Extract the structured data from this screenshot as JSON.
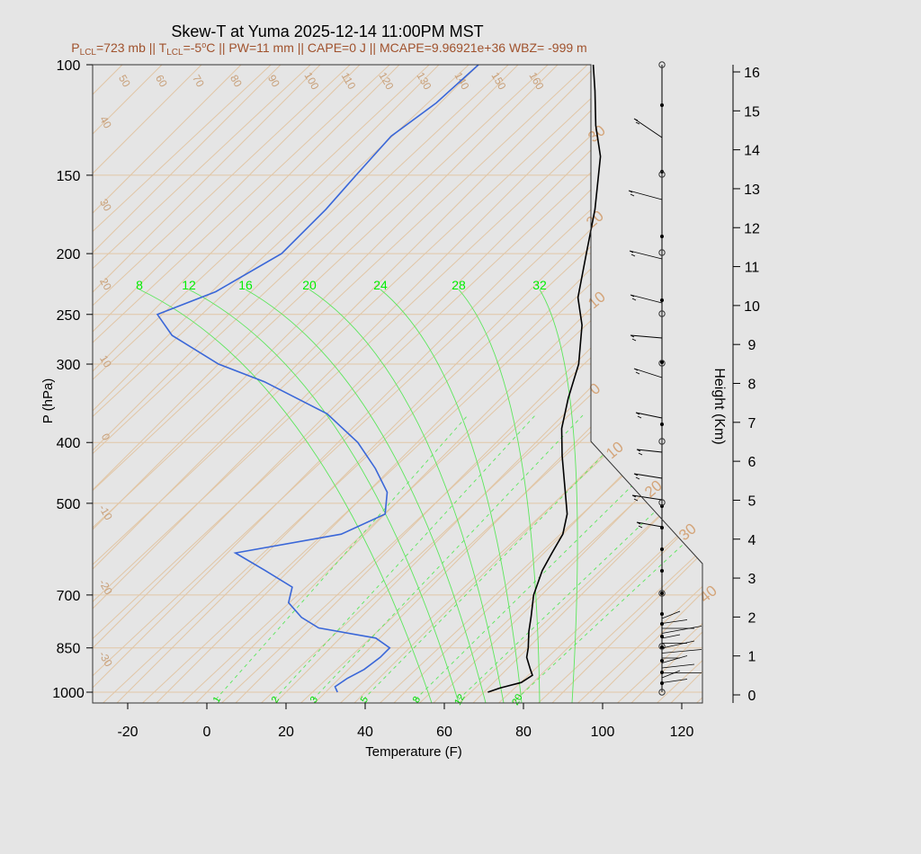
{
  "chart_data": {
    "type": "line",
    "title": "Skew-T at Yuma 2025-12-14 11:00PM MST",
    "subtitle_parts": {
      "plcl_prefix": "P",
      "plcl_sub": "LCL",
      "plcl_value": "=723 mb || T",
      "tlcl_sub": "LCL",
      "tlcl_value": "=-5",
      "deg_sup": "o",
      "rest": "C || PW=11 mm || CAPE=0 J || MCAPE=9.96921e+36 WBZ= -999 m"
    },
    "xlabel": "Temperature (F)",
    "ylabel": "P (hPa)",
    "y2label": "Height (Km)",
    "x_ticks": [
      "-20",
      "0",
      "20",
      "40",
      "60",
      "80",
      "100",
      "120"
    ],
    "x_tick_values": [
      -20,
      0,
      20,
      40,
      60,
      80,
      100,
      120
    ],
    "p_ticks": [
      "100",
      "150",
      "200",
      "250",
      "300",
      "400",
      "500",
      "700",
      "850",
      "1000"
    ],
    "p_tick_values": [
      100,
      150,
      200,
      250,
      300,
      400,
      500,
      700,
      850,
      1000
    ],
    "height_ticks": [
      "0",
      "1",
      "2",
      "3",
      "4",
      "5",
      "6",
      "7",
      "8",
      "9",
      "10",
      "11",
      "12",
      "13",
      "14",
      "15",
      "16"
    ],
    "height_tick_values": [
      0,
      1,
      2,
      3,
      4,
      5,
      6,
      7,
      8,
      9,
      10,
      11,
      12,
      13,
      14,
      15,
      16
    ],
    "mixing_ratio_labels_top": [
      "8",
      "12",
      "16",
      "20",
      "24",
      "28",
      "32"
    ],
    "mixing_ratio_labels_bottom": [
      "1",
      "2",
      "3",
      "5",
      "8",
      "12",
      "20"
    ],
    "isotherm_labels_top": [
      "50",
      "60",
      "70",
      "80",
      "90",
      "100",
      "110",
      "120",
      "130",
      "140",
      "150",
      "160"
    ],
    "isotherm_labels_left": [
      "40",
      "30",
      "20",
      "10",
      "0",
      "-10",
      "-20",
      "-30"
    ],
    "dry_adiabat_labels_right": [
      "30",
      "20",
      "10",
      "0",
      "10",
      "20",
      "30",
      "40"
    ],
    "temperature_series": {
      "name": "",
      "color": "#000000",
      "points": [
        {
          "p": 1000,
          "t": 71
        },
        {
          "p": 985,
          "t": 73
        },
        {
          "p": 965,
          "t": 77
        },
        {
          "p": 940,
          "t": 78
        },
        {
          "p": 920,
          "t": 76
        },
        {
          "p": 880,
          "t": 72
        },
        {
          "p": 850,
          "t": 70
        },
        {
          "p": 800,
          "t": 66
        },
        {
          "p": 760,
          "t": 63
        },
        {
          "p": 700,
          "t": 58
        },
        {
          "p": 640,
          "t": 54
        },
        {
          "p": 600,
          "t": 52
        },
        {
          "p": 560,
          "t": 50
        },
        {
          "p": 520,
          "t": 46
        },
        {
          "p": 480,
          "t": 40
        },
        {
          "p": 420,
          "t": 30
        },
        {
          "p": 380,
          "t": 23
        },
        {
          "p": 340,
          "t": 17
        },
        {
          "p": 300,
          "t": 11
        },
        {
          "p": 260,
          "t": 2
        },
        {
          "p": 235,
          "t": -6
        },
        {
          "p": 200,
          "t": -15
        },
        {
          "p": 170,
          "t": -24
        },
        {
          "p": 140,
          "t": -36
        },
        {
          "p": 125,
          "t": -45
        },
        {
          "p": 110,
          "t": -54
        },
        {
          "p": 100,
          "t": -61
        }
      ]
    },
    "dewpoint_series": {
      "name": "",
      "color": "#3a67d8",
      "points": [
        {
          "p": 1000,
          "t": 33
        },
        {
          "p": 980,
          "t": 31
        },
        {
          "p": 950,
          "t": 32
        },
        {
          "p": 920,
          "t": 34
        },
        {
          "p": 880,
          "t": 35
        },
        {
          "p": 850,
          "t": 35
        },
        {
          "p": 820,
          "t": 29
        },
        {
          "p": 790,
          "t": 12
        },
        {
          "p": 760,
          "t": 5
        },
        {
          "p": 720,
          "t": -2
        },
        {
          "p": 680,
          "t": -5
        },
        {
          "p": 640,
          "t": -16
        },
        {
          "p": 600,
          "t": -28
        },
        {
          "p": 560,
          "t": -6
        },
        {
          "p": 520,
          "t": 0
        },
        {
          "p": 480,
          "t": -5
        },
        {
          "p": 440,
          "t": -14
        },
        {
          "p": 400,
          "t": -25
        },
        {
          "p": 360,
          "t": -40
        },
        {
          "p": 320,
          "t": -64
        },
        {
          "p": 300,
          "t": -80
        },
        {
          "p": 270,
          "t": -99
        },
        {
          "p": 250,
          "t": -108
        },
        {
          "p": 230,
          "t": -99
        },
        {
          "p": 200,
          "t": -92
        },
        {
          "p": 170,
          "t": -92
        },
        {
          "p": 150,
          "t": -93
        },
        {
          "p": 130,
          "t": -94
        },
        {
          "p": 115,
          "t": -91
        },
        {
          "p": 100,
          "t": -90
        }
      ]
    },
    "grid": true
  }
}
